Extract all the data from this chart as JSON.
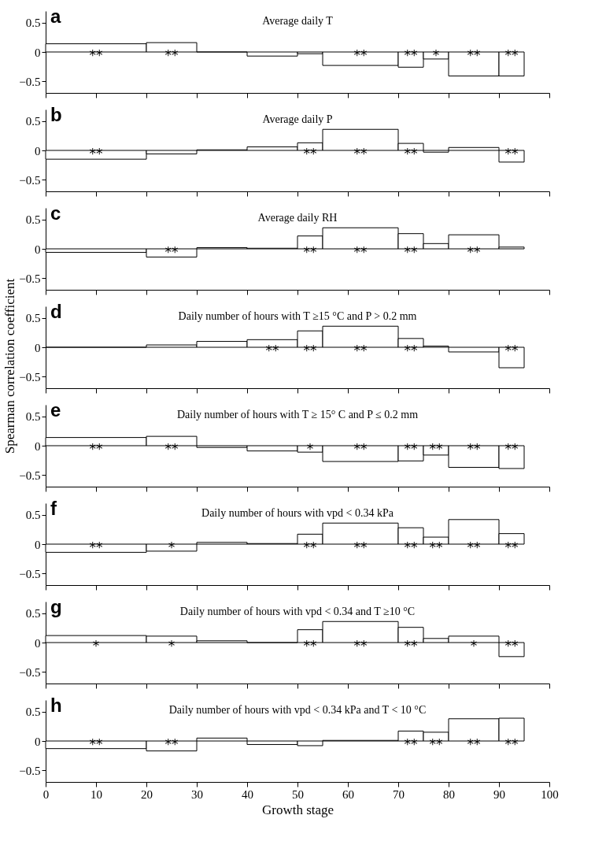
{
  "chart_data": [
    {
      "type": "histogram",
      "title": "Average daily T",
      "color": "#000000",
      "bins": [
        0,
        20,
        30,
        40,
        50,
        55,
        70,
        75,
        80,
        90,
        95
      ],
      "values": [
        0.14,
        0.16,
        0.0,
        -0.07,
        -0.03,
        -0.23,
        -0.26,
        -0.12,
        -0.41,
        -0.41
      ],
      "annotations": [
        "a",
        {
          "text": "**",
          "x": 10,
          "y": 0
        },
        {
          "text": "**",
          "x": 25,
          "y": 0
        },
        {
          "text": "**",
          "x": 62.5,
          "y": 0
        },
        {
          "text": "**",
          "x": 72.5,
          "y": 0
        },
        {
          "text": "*",
          "x": 77.5,
          "y": 0
        },
        {
          "text": "**",
          "x": 85,
          "y": 0
        },
        {
          "text": "**",
          "x": 92.5,
          "y": 0
        }
      ],
      "xlim": [
        0,
        100
      ],
      "xticks": [
        0,
        10,
        20,
        30,
        40,
        50,
        60,
        70,
        80,
        90,
        100
      ],
      "ylim": [
        -0.7,
        0.7
      ],
      "yticks": [
        -0.5,
        0,
        0.5
      ],
      "tick_labels": "y",
      "grid": false
    },
    {
      "type": "histogram",
      "title": "Average daily P",
      "color": "#000000",
      "bins": [
        0,
        20,
        30,
        40,
        50,
        55,
        70,
        75,
        80,
        90,
        95
      ],
      "values": [
        -0.15,
        -0.06,
        0.01,
        0.06,
        0.13,
        0.36,
        0.12,
        -0.03,
        0.05,
        -0.2
      ],
      "annotations": [
        "b",
        {
          "text": "**",
          "x": 10,
          "y": 0
        },
        {
          "text": "**",
          "x": 52.5,
          "y": 0
        },
        {
          "text": "**",
          "x": 62.5,
          "y": 0
        },
        {
          "text": "**",
          "x": 72.5,
          "y": 0
        },
        {
          "text": "**",
          "x": 92.5,
          "y": 0
        }
      ],
      "xlim": [
        0,
        100
      ],
      "xticks": [
        0,
        10,
        20,
        30,
        40,
        50,
        60,
        70,
        80,
        90,
        100
      ],
      "ylim": [
        -0.7,
        0.7
      ],
      "yticks": [
        -0.5,
        0,
        0.5
      ],
      "tick_labels": "y",
      "grid": false
    },
    {
      "type": "histogram",
      "title": "Average daily RH",
      "color": "#000000",
      "bins": [
        0,
        20,
        30,
        40,
        50,
        55,
        70,
        75,
        80,
        90,
        95
      ],
      "values": [
        -0.06,
        -0.14,
        0.02,
        0.01,
        0.22,
        0.36,
        0.26,
        0.09,
        0.24,
        0.03
      ],
      "annotations": [
        "c",
        {
          "text": "**",
          "x": 25,
          "y": 0
        },
        {
          "text": "**",
          "x": 52.5,
          "y": 0
        },
        {
          "text": "**",
          "x": 62.5,
          "y": 0
        },
        {
          "text": "**",
          "x": 72.5,
          "y": 0
        },
        {
          "text": "**",
          "x": 85,
          "y": 0
        }
      ],
      "xlim": [
        0,
        100
      ],
      "xticks": [
        0,
        10,
        20,
        30,
        40,
        50,
        60,
        70,
        80,
        90,
        100
      ],
      "ylim": [
        -0.7,
        0.7
      ],
      "yticks": [
        -0.5,
        0,
        0.5
      ],
      "tick_labels": "y",
      "grid": false
    },
    {
      "type": "histogram",
      "title": "Daily number of hours with T ≥15 °C and P > 0.2 mm",
      "color": "#000000",
      "bins": [
        0,
        20,
        30,
        40,
        50,
        55,
        70,
        75,
        80,
        90,
        95
      ],
      "values": [
        0.0,
        0.04,
        0.1,
        0.13,
        0.28,
        0.36,
        0.15,
        0.02,
        -0.08,
        -0.35
      ],
      "annotations": [
        "d",
        {
          "text": "**",
          "x": 45,
          "y": 0
        },
        {
          "text": "**",
          "x": 52.5,
          "y": 0
        },
        {
          "text": "**",
          "x": 62.5,
          "y": 0
        },
        {
          "text": "**",
          "x": 72.5,
          "y": 0
        },
        {
          "text": "**",
          "x": 92.5,
          "y": 0
        }
      ],
      "xlim": [
        0,
        100
      ],
      "xticks": [
        0,
        10,
        20,
        30,
        40,
        50,
        60,
        70,
        80,
        90,
        100
      ],
      "ylim": [
        -0.7,
        0.7
      ],
      "yticks": [
        -0.5,
        0,
        0.5
      ],
      "tick_labels": "y",
      "grid": false
    },
    {
      "type": "histogram",
      "title": "Daily number of hours with T ≥ 15° C and P ≤ 0.2 mm",
      "ylabel": "Spearman correlation coefficient",
      "color": "#000000",
      "bins": [
        0,
        20,
        30,
        40,
        50,
        55,
        70,
        75,
        80,
        90,
        95
      ],
      "values": [
        0.14,
        0.16,
        -0.03,
        -0.09,
        -0.11,
        -0.27,
        -0.26,
        -0.16,
        -0.37,
        -0.39
      ],
      "annotations": [
        "e",
        {
          "text": "**",
          "x": 10,
          "y": 0
        },
        {
          "text": "**",
          "x": 25,
          "y": 0
        },
        {
          "text": "*",
          "x": 52.5,
          "y": 0
        },
        {
          "text": "**",
          "x": 62.5,
          "y": 0
        },
        {
          "text": "**",
          "x": 72.5,
          "y": 0
        },
        {
          "text": "**",
          "x": 77.5,
          "y": 0
        },
        {
          "text": "**",
          "x": 85,
          "y": 0
        },
        {
          "text": "**",
          "x": 92.5,
          "y": 0
        }
      ],
      "xlim": [
        0,
        100
      ],
      "xticks": [
        0,
        10,
        20,
        30,
        40,
        50,
        60,
        70,
        80,
        90,
        100
      ],
      "ylim": [
        -0.7,
        0.7
      ],
      "yticks": [
        -0.5,
        0,
        0.5
      ],
      "tick_labels": "y",
      "grid": false
    },
    {
      "type": "histogram",
      "title": "Daily number of hours with vpd < 0.34 kPa",
      "color": "#000000",
      "bins": [
        0,
        20,
        30,
        40,
        50,
        55,
        70,
        75,
        80,
        90,
        95
      ],
      "values": [
        -0.14,
        -0.12,
        0.03,
        0.01,
        0.17,
        0.36,
        0.28,
        0.12,
        0.42,
        0.18
      ],
      "annotations": [
        "f",
        {
          "text": "**",
          "x": 10,
          "y": 0
        },
        {
          "text": "*",
          "x": 25,
          "y": 0
        },
        {
          "text": "**",
          "x": 52.5,
          "y": 0
        },
        {
          "text": "**",
          "x": 62.5,
          "y": 0
        },
        {
          "text": "**",
          "x": 72.5,
          "y": 0
        },
        {
          "text": "**",
          "x": 77.5,
          "y": 0
        },
        {
          "text": "**",
          "x": 85,
          "y": 0
        },
        {
          "text": "**",
          "x": 92.5,
          "y": 0
        }
      ],
      "xlim": [
        0,
        100
      ],
      "xticks": [
        0,
        10,
        20,
        30,
        40,
        50,
        60,
        70,
        80,
        90,
        100
      ],
      "ylim": [
        -0.7,
        0.7
      ],
      "yticks": [
        -0.5,
        0,
        0.5
      ],
      "tick_labels": "y",
      "grid": false
    },
    {
      "type": "histogram",
      "title": "Daily number of hours with vpd < 0.34 and T ≥10 °C",
      "color": "#000000",
      "bins": [
        0,
        20,
        30,
        40,
        50,
        55,
        70,
        75,
        80,
        90,
        95
      ],
      "values": [
        0.12,
        0.11,
        0.03,
        0.0,
        0.22,
        0.36,
        0.26,
        0.07,
        0.11,
        -0.24
      ],
      "annotations": [
        "g",
        {
          "text": "*",
          "x": 10,
          "y": 0
        },
        {
          "text": "*",
          "x": 25,
          "y": 0
        },
        {
          "text": "**",
          "x": 52.5,
          "y": 0
        },
        {
          "text": "**",
          "x": 62.5,
          "y": 0
        },
        {
          "text": "**",
          "x": 72.5,
          "y": 0
        },
        {
          "text": "*",
          "x": 85,
          "y": 0
        },
        {
          "text": "**",
          "x": 92.5,
          "y": 0
        }
      ],
      "xlim": [
        0,
        100
      ],
      "xticks": [
        0,
        10,
        20,
        30,
        40,
        50,
        60,
        70,
        80,
        90,
        100
      ],
      "ylim": [
        -0.7,
        0.7
      ],
      "yticks": [
        -0.5,
        0,
        0.5
      ],
      "tick_labels": "y",
      "grid": false
    },
    {
      "type": "histogram",
      "title": "Daily number of hours with vpd < 0.34 kPa and T < 10 °C",
      "xlabel": "Growth stage",
      "color": "#000000",
      "bins": [
        0,
        20,
        30,
        40,
        50,
        55,
        70,
        75,
        80,
        90,
        95
      ],
      "values": [
        -0.13,
        -0.17,
        0.05,
        -0.06,
        -0.08,
        0.01,
        0.17,
        0.15,
        0.38,
        0.39
      ],
      "annotations": [
        "h",
        {
          "text": "**",
          "x": 10,
          "y": 0
        },
        {
          "text": "**",
          "x": 25,
          "y": 0
        },
        {
          "text": "**",
          "x": 72.5,
          "y": 0
        },
        {
          "text": "**",
          "x": 77.5,
          "y": 0
        },
        {
          "text": "**",
          "x": 85,
          "y": 0
        },
        {
          "text": "**",
          "x": 92.5,
          "y": 0
        }
      ],
      "xlim": [
        0,
        100
      ],
      "xticks": [
        0,
        10,
        20,
        30,
        40,
        50,
        60,
        70,
        80,
        90,
        100
      ],
      "ylim": [
        -0.7,
        0.7
      ],
      "yticks": [
        -0.5,
        0,
        0.5
      ],
      "grid": false
    }
  ]
}
